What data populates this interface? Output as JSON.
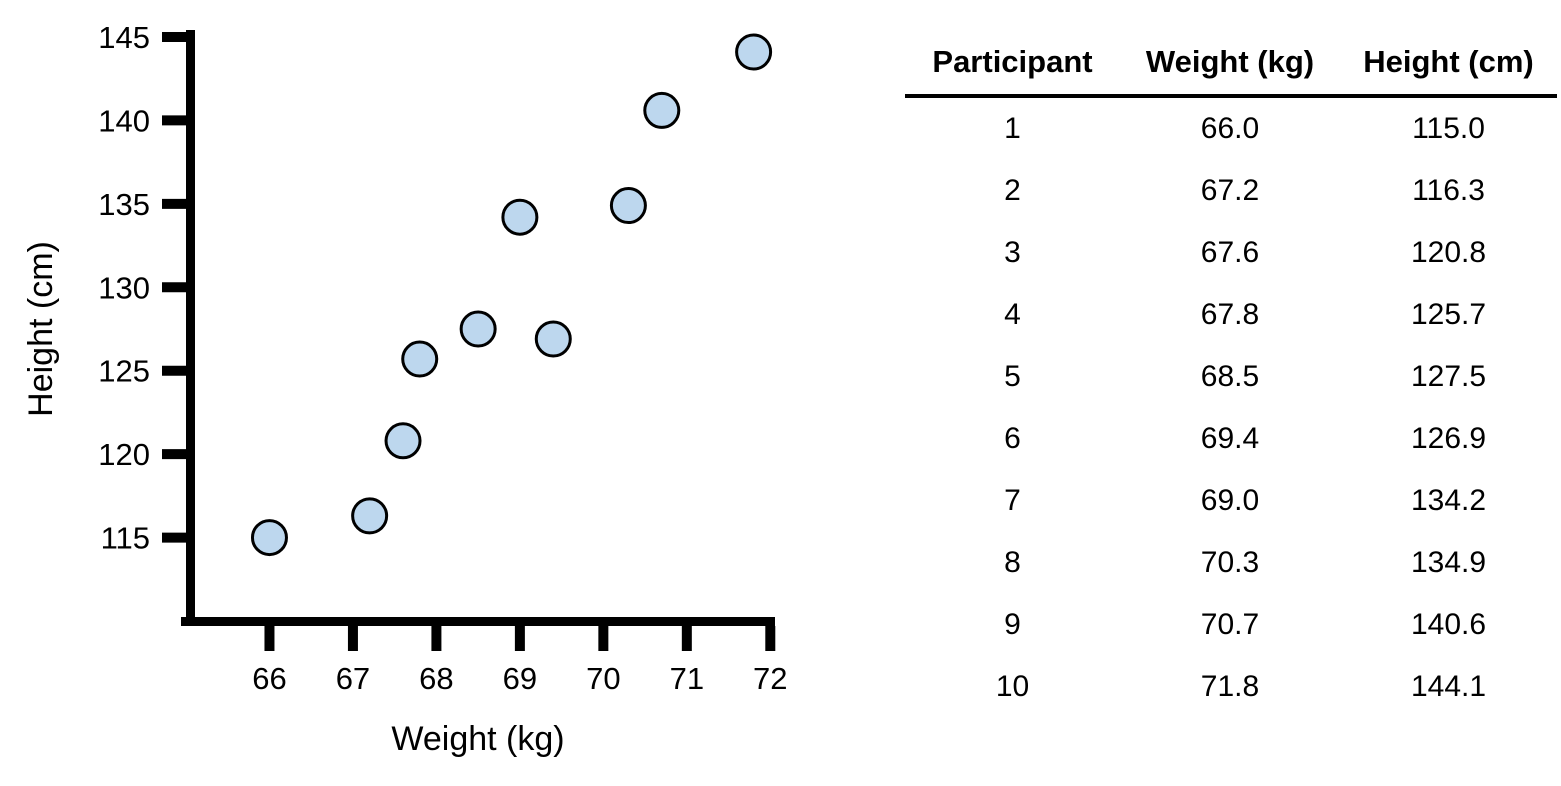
{
  "figure": {
    "background": "#ffffff",
    "text_color": "#000000"
  },
  "chart_data": {
    "type": "scatter",
    "title": "",
    "xlabel": "Weight (kg)",
    "ylabel": "Height (cm)",
    "xlim": [
      65,
      72
    ],
    "ylim": [
      110,
      145
    ],
    "x_ticks": [
      66,
      67,
      68,
      69,
      70,
      71,
      72
    ],
    "y_ticks": [
      115,
      120,
      125,
      130,
      135,
      140,
      145
    ],
    "grid": false,
    "legend_position": "none",
    "axis_color": "#000000",
    "marker_fill": "#BDD7EE",
    "marker_stroke": "#000000",
    "series": [
      {
        "name": "Participants",
        "points": [
          [
            66.0,
            115.0
          ],
          [
            67.2,
            116.3
          ],
          [
            67.6,
            120.8
          ],
          [
            67.8,
            125.7
          ],
          [
            68.5,
            127.5
          ],
          [
            69.4,
            126.9
          ],
          [
            69.0,
            134.2
          ],
          [
            70.3,
            134.9
          ],
          [
            70.7,
            140.6
          ],
          [
            71.8,
            144.1
          ]
        ]
      }
    ]
  },
  "table": {
    "headers": [
      "Participant",
      "Weight (kg)",
      "Height (cm)"
    ],
    "rows": [
      {
        "participant": "1",
        "weight": "66.0",
        "height": "115.0"
      },
      {
        "participant": "2",
        "weight": "67.2",
        "height": "116.3"
      },
      {
        "participant": "3",
        "weight": "67.6",
        "height": "120.8"
      },
      {
        "participant": "4",
        "weight": "67.8",
        "height": "125.7"
      },
      {
        "participant": "5",
        "weight": "68.5",
        "height": "127.5"
      },
      {
        "participant": "6",
        "weight": "69.4",
        "height": "126.9"
      },
      {
        "participant": "7",
        "weight": "69.0",
        "height": "134.2"
      },
      {
        "participant": "8",
        "weight": "70.3",
        "height": "134.9"
      },
      {
        "participant": "9",
        "weight": "70.7",
        "height": "140.6"
      },
      {
        "participant": "10",
        "weight": "71.8",
        "height": "144.1"
      }
    ]
  }
}
